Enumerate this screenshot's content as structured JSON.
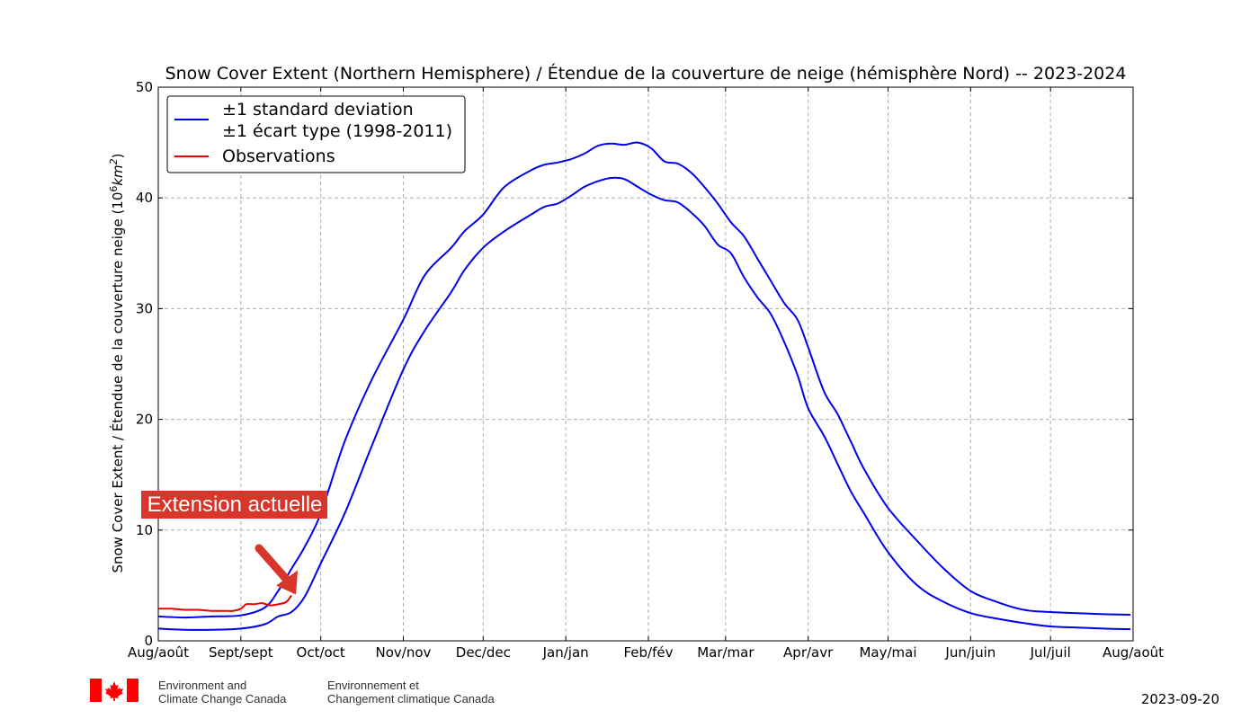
{
  "chart_data": {
    "type": "line",
    "title": "Snow Cover Extent (Northern Hemisphere) / Étendue de la couverture de neige (hémisphère Nord) -- 2023-2024",
    "ylabel": "Snow Cover Extent / Étendue de la couverture neige (10⁶km²)",
    "xlabel": "",
    "ylim": [
      0,
      50
    ],
    "yticks": [
      0,
      10,
      20,
      30,
      40,
      50
    ],
    "xlim": [
      0,
      366
    ],
    "xtick_labels": [
      "Aug/août",
      "Sept/sept",
      "Oct/oct",
      "Nov/nov",
      "Dec/dec",
      "Jan/jan",
      "Feb/fév",
      "Mar/mar",
      "Apr/avr",
      "May/mai",
      "Jun/juin",
      "Jul/juil",
      "Aug/août"
    ],
    "xtick_days": [
      0,
      31,
      61,
      92,
      122,
      153,
      184,
      213,
      244,
      274,
      305,
      335,
      366
    ],
    "grid": true,
    "legend_position": "top-left",
    "legend": [
      {
        "label_line1": "±1 standard deviation",
        "label_line2": "±1 écart type (1998-2011)",
        "color": "#0000ee"
      },
      {
        "label_line1": "Observations",
        "color": "#ee0000"
      }
    ],
    "series": [
      {
        "name": "±1 standard deviation (upper)",
        "color": "#0000ee",
        "x": [
          0,
          10,
          20,
          31,
          40,
          45,
          50,
          55,
          61,
          70,
          80,
          92,
          100,
          110,
          115,
          122,
          130,
          140,
          145,
          150,
          155,
          160,
          165,
          170,
          175,
          180,
          185,
          190,
          195,
          200,
          205,
          210,
          215,
          220,
          225,
          230,
          235,
          240,
          244,
          250,
          255,
          260,
          265,
          274,
          285,
          295,
          305,
          315,
          325,
          335,
          345,
          355,
          365
        ],
        "values": [
          2.2,
          2.1,
          2.2,
          2.3,
          3.0,
          4.5,
          6.5,
          8.5,
          11.5,
          18.0,
          23.5,
          29.0,
          33.0,
          35.5,
          37.0,
          38.5,
          41.0,
          42.5,
          43.0,
          43.2,
          43.5,
          44.0,
          44.7,
          44.9,
          44.8,
          45.0,
          44.5,
          43.3,
          43.1,
          42.3,
          41.0,
          39.5,
          37.8,
          36.5,
          34.5,
          32.5,
          30.5,
          29.0,
          26.5,
          22.5,
          20.5,
          18.0,
          15.5,
          12.0,
          9.0,
          6.5,
          4.5,
          3.5,
          2.8,
          2.6,
          2.5,
          2.4,
          2.35
        ]
      },
      {
        "name": "±1 standard deviation (lower)",
        "color": "#0000ee",
        "x": [
          0,
          10,
          20,
          31,
          40,
          45,
          50,
          55,
          61,
          70,
          80,
          92,
          100,
          110,
          115,
          122,
          130,
          140,
          145,
          150,
          155,
          160,
          165,
          170,
          175,
          180,
          185,
          190,
          195,
          200,
          205,
          210,
          215,
          220,
          225,
          230,
          235,
          240,
          244,
          250,
          255,
          260,
          265,
          274,
          285,
          295,
          305,
          315,
          325,
          335,
          345,
          355,
          365
        ],
        "values": [
          1.1,
          1.0,
          1.0,
          1.1,
          1.5,
          2.2,
          2.6,
          4.0,
          7.0,
          11.5,
          17.5,
          24.5,
          28.0,
          31.5,
          33.5,
          35.5,
          37.0,
          38.5,
          39.2,
          39.5,
          40.2,
          41.0,
          41.5,
          41.8,
          41.7,
          41.0,
          40.3,
          39.8,
          39.6,
          38.7,
          37.5,
          35.8,
          35.0,
          32.8,
          31.0,
          29.5,
          27.0,
          24.0,
          21.0,
          18.5,
          16.0,
          13.5,
          11.5,
          8.0,
          5.0,
          3.5,
          2.5,
          2.0,
          1.6,
          1.3,
          1.2,
          1.1,
          1.05
        ]
      },
      {
        "name": "Observations",
        "color": "#ee0000",
        "x": [
          0,
          5,
          10,
          15,
          20,
          25,
          28,
          31,
          33,
          36,
          39,
          42,
          45,
          48,
          50
        ],
        "values": [
          2.9,
          2.9,
          2.8,
          2.8,
          2.7,
          2.7,
          2.7,
          2.9,
          3.3,
          3.3,
          3.4,
          3.2,
          3.3,
          3.5,
          4.1
        ]
      }
    ],
    "annotation": {
      "text": "Extension actuelle",
      "background": "#d9362b",
      "arrow_color": "#d9362b",
      "target_day": 50,
      "target_value": 4.1
    }
  },
  "footer": {
    "dept_en_line1": "Environment and",
    "dept_en_line2": "Climate Change Canada",
    "dept_fr_line1": "Environnement et",
    "dept_fr_line2": "Changement climatique Canada",
    "flag_icon": "canada-flag-icon",
    "flag_color": "#ff0000"
  },
  "date_stamp": "2023-09-20"
}
